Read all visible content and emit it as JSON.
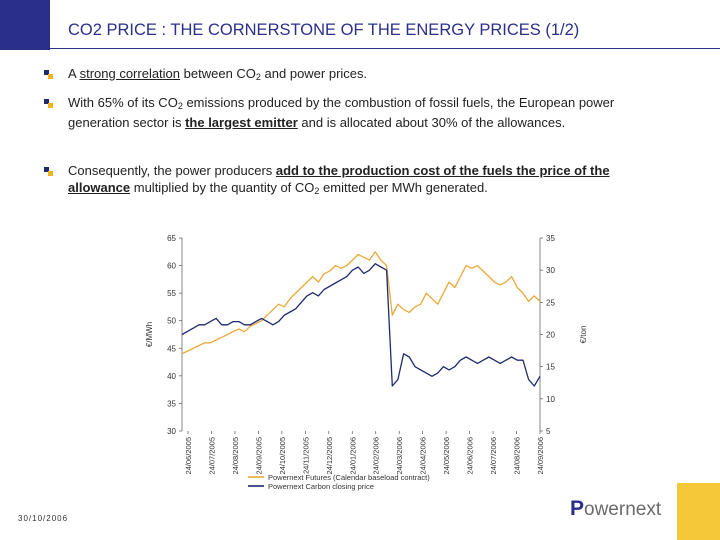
{
  "title": "CO2 PRICE : THE CORNERSTONE OF THE ENERGY PRICES (1/2)",
  "bullets": {
    "b1": {
      "pre": "A ",
      "emph": "strong correlation",
      "mid": " between CO",
      "sub": "2",
      "post": " and power prices."
    },
    "b2": {
      "pre": "With 65% of its CO",
      "sub": "2",
      "mid": " emissions produced by the combustion of fossil fuels, the European power generation sector is ",
      "emph": "the largest emitter",
      "post": " and is allocated about 30% of the allowances."
    },
    "b3": {
      "pre": "Consequently, the power producers ",
      "emph1": "add to the production cost of the fuels the price of the allowance",
      "mid": " multiplied by the quantity of CO",
      "sub": "2",
      "post": " emitted per MWh generated."
    }
  },
  "footer": {
    "date": "30/10/2006",
    "logo_initial": "P",
    "logo_rest": "owernext"
  },
  "colors": {
    "brand_blue": "#2b2f8c",
    "accent_yellow": "#f5c83a",
    "series_futures": "#e8a93a",
    "series_carbon": "#1f2a6e"
  },
  "chart_data": {
    "type": "line",
    "ylabel_left": "€/MWh",
    "ylabel_right": "€/ton",
    "ylim_left": [
      30,
      65
    ],
    "ylim_right": [
      5,
      35
    ],
    "yticks_left": [
      "65",
      "60",
      "55",
      "50",
      "45",
      "40",
      "35",
      "30"
    ],
    "yticks_right": [
      "35",
      "30",
      "25",
      "20",
      "15",
      "10",
      "5"
    ],
    "xtick_labels": [
      "24/06/2005",
      "24/07/2005",
      "24/08/2005",
      "24/09/2005",
      "24/10/2005",
      "24/11/2005",
      "24/12/2005",
      "24/01/2006",
      "24/02/2006",
      "24/03/2006",
      "24/04/2006",
      "24/05/2006",
      "24/06/2006",
      "24/07/2006",
      "24/08/2006",
      "24/09/2006"
    ],
    "legend_position": "bottom",
    "series": [
      {
        "name": "Powernext Futures (Calendar baseload contract)",
        "axis": "left",
        "color": "#e8a93a",
        "values": [
          44,
          44.5,
          45,
          45.5,
          46,
          46,
          46.5,
          47,
          47.5,
          48,
          48.5,
          48,
          49,
          49.5,
          50,
          51,
          52,
          53,
          52.5,
          54,
          55,
          56,
          57,
          58,
          57,
          58.5,
          59,
          60,
          59.5,
          60,
          61,
          62,
          61.5,
          61,
          62.5,
          61,
          60,
          51,
          53,
          52,
          51.5,
          52.5,
          53,
          55,
          54,
          53,
          55,
          57,
          56,
          58,
          60,
          59.5,
          60,
          59,
          58,
          57,
          56.5,
          57,
          58,
          56,
          55,
          53.5,
          54.5,
          53.5
        ]
      },
      {
        "name": "Powernext Carbon closing price",
        "axis": "right",
        "color": "#1f2a6e",
        "values": [
          20,
          20.5,
          21,
          21.5,
          21.5,
          22,
          22.5,
          21.5,
          21.5,
          22,
          22,
          21.5,
          21.5,
          22,
          22.5,
          22,
          21.5,
          22,
          23,
          23.5,
          24,
          25,
          26,
          26.5,
          26,
          27,
          27.5,
          28,
          28.5,
          29,
          30,
          30.5,
          29.5,
          30,
          31,
          30.5,
          30,
          12,
          13,
          17,
          16.5,
          15,
          14.5,
          14,
          13.5,
          14,
          15,
          14.5,
          15,
          16,
          16.5,
          16,
          15.5,
          16,
          16.5,
          16,
          15.5,
          16,
          16.5,
          16,
          16,
          13,
          12,
          13.5
        ]
      }
    ]
  }
}
